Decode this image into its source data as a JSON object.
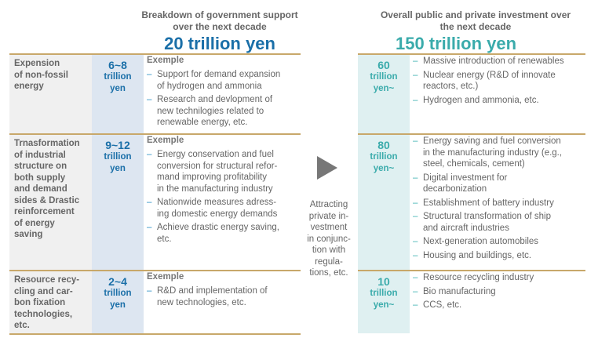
{
  "left": {
    "heading": "Breakdown of government support\nover the next decade",
    "total": "20 trillion yen",
    "accent": "#1a6fa8",
    "rows": [
      {
        "category": "Expension\nof non-fossil\nenergy",
        "amount": "6~8",
        "unit": "trillion\nyen",
        "label": "Exemple",
        "items": [
          "Support for demand expansion\nof hydrogen and ammonia",
          "Research and devlopment of\nnew technilogies related to\nrenewable energy, etc."
        ]
      },
      {
        "category": "Trnasformation\nof industrial\nstructure on\nboth supply\nand demand\nsides & Drastic\nreinforcement\nof energy\nsaving",
        "amount": "9~12",
        "unit": "trillion\nyen",
        "label": "Exemple",
        "items": [
          "Energy conservation and fuel\nconversion for structural refor-\nmand improving profitability\nin the manufacturing industry",
          "Nationwide measures adress-\ning domestic energy demands",
          "Achieve drastic energy saving,\netc."
        ]
      },
      {
        "category": "Resource recy-\ncling and car-\nbon fixation\ntechnologies,\netc.",
        "amount": "2~4",
        "unit": "trillion\nyen",
        "label": "Exemple",
        "items": [
          "R&D and implementation of\nnew technologies, etc."
        ]
      }
    ]
  },
  "middle": {
    "icon": "play-arrow-icon",
    "text": "Attracting\nprivate in-\nvestment\nin conjunc-\ntion with\nregula-\ntions, etc."
  },
  "right": {
    "heading": "Overall public and private investment over\nthe next decade",
    "total": "150 trillion yen",
    "accent": "#3aabab",
    "rows": [
      {
        "amount": "60",
        "unit": "trillion\nyen~",
        "items": [
          "Massive introduction of renewables",
          "Nuclear energy (R&D of innovate\nreactors, etc.)",
          "Hydrogen and ammonia, etc."
        ]
      },
      {
        "amount": "80",
        "unit": "trillion\nyen~",
        "items": [
          "Energy saving and fuel conversion\nin the manufacturing industry (e.g.,\nsteel, chemicals, cement)",
          "Digital investment for\ndecarbonization",
          "Establishment of battery industry",
          "Structural transformation of ship\nand aircraft industries",
          "Next-generation automobiles",
          "Housing and buildings, etc."
        ]
      },
      {
        "amount": "10",
        "unit": "trillion\nyen~",
        "items": [
          "Resource recycling industry",
          "Bio manufacturing",
          "CCS, etc."
        ]
      }
    ]
  }
}
